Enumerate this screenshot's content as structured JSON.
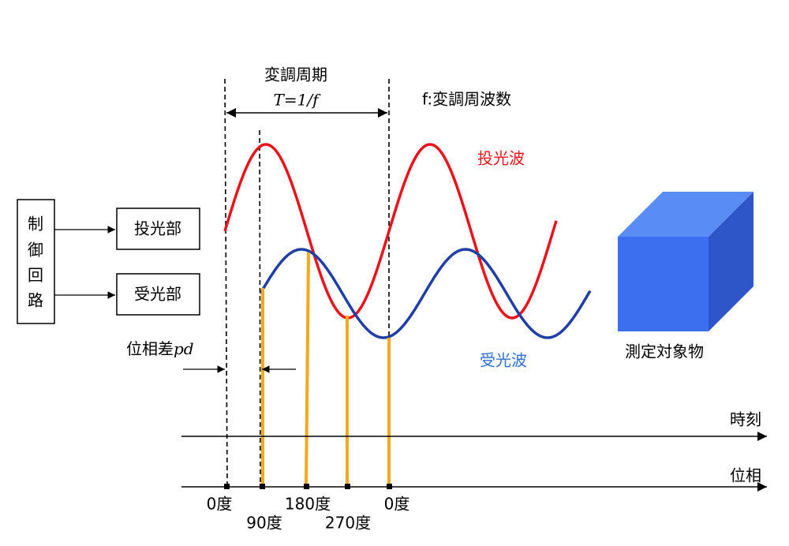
{
  "header": {
    "period_label": "変調周期",
    "period_formula": "T=1/f",
    "frequency_label": "f:変調周波数"
  },
  "waves": {
    "emitted": "投光波",
    "received": "受光波"
  },
  "blocks": {
    "control": [
      "制",
      "御",
      "回",
      "路"
    ],
    "emitter": "投光部",
    "receiver": "受光部"
  },
  "phase_difference": {
    "label": "位相差",
    "symbol": "pd"
  },
  "target": "測定対象物",
  "axes": {
    "time": "時刻",
    "phase": "位相"
  },
  "phase_ticks": [
    "0度",
    "90度",
    "180度",
    "270度",
    "0度"
  ]
}
